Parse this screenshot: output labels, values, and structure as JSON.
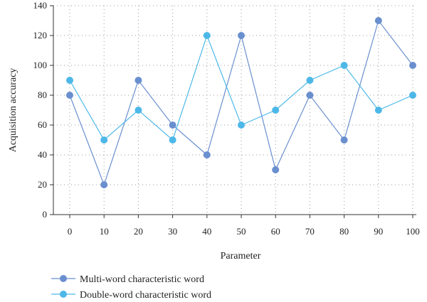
{
  "chart_data": {
    "type": "line",
    "title": "",
    "xlabel": "Parameter",
    "ylabel": "Acquisition accuracy",
    "x": [
      0,
      10,
      20,
      30,
      40,
      50,
      60,
      70,
      80,
      90,
      100
    ],
    "xticks": [
      "0",
      "10",
      "20",
      "30",
      "40",
      "50",
      "60",
      "70",
      "80",
      "90",
      "100"
    ],
    "yticks": [
      "0",
      "20",
      "40",
      "60",
      "80",
      "100",
      "120",
      "140"
    ],
    "ylim": [
      0,
      140
    ],
    "grid": "dotted horizontal and vertical",
    "legend_position": "bottom-left",
    "series": [
      {
        "name": "Multi-word characteristic word",
        "color": "#6a8fcf",
        "values": [
          80,
          20,
          90,
          60,
          40,
          120,
          30,
          80,
          50,
          130,
          100
        ]
      },
      {
        "name": "Double-word characteristic word",
        "color": "#4db8e8",
        "values": [
          90,
          50,
          70,
          50,
          120,
          60,
          70,
          90,
          100,
          70,
          80
        ]
      }
    ]
  }
}
